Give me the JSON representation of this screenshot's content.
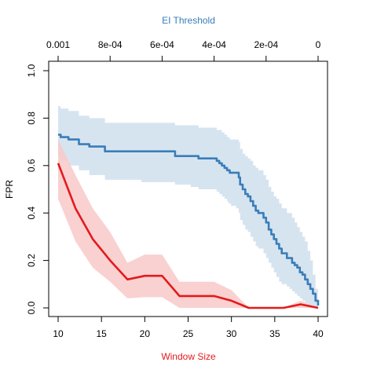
{
  "chart_data": {
    "type": "line",
    "top_axis": {
      "title": "EI Threshold",
      "title_color": "#3A7DB8",
      "ticks": [
        {
          "value": 0.001,
          "label": "0.001"
        },
        {
          "value": 0.0008,
          "label": "8e-04"
        },
        {
          "value": 0.0006,
          "label": "6e-04"
        },
        {
          "value": 0.0004,
          "label": "4e-04"
        },
        {
          "value": 0.0002,
          "label": "2e-04"
        },
        {
          "value": 0,
          "label": "0"
        }
      ],
      "xlim": [
        0.001,
        0
      ]
    },
    "bottom_axis": {
      "title": "Window Size",
      "title_color": "#E41A1C",
      "ticks": [
        {
          "value": 10,
          "label": "10"
        },
        {
          "value": 15,
          "label": "15"
        },
        {
          "value": 20,
          "label": "20"
        },
        {
          "value": 25,
          "label": "25"
        },
        {
          "value": 30,
          "label": "30"
        },
        {
          "value": 35,
          "label": "35"
        },
        {
          "value": 40,
          "label": "40"
        }
      ],
      "xlim": [
        10,
        40
      ]
    },
    "y_axis": {
      "title": "FPR",
      "ticks": [
        {
          "value": 0,
          "label": "0.0"
        },
        {
          "value": 0.2,
          "label": "0.2"
        },
        {
          "value": 0.4,
          "label": "0.4"
        },
        {
          "value": 0.6,
          "label": "0.6"
        },
        {
          "value": 0.8,
          "label": "0.8"
        },
        {
          "value": 1.0,
          "label": "1.0"
        }
      ],
      "ylim": [
        0,
        1.0
      ]
    },
    "grid": false,
    "series": [
      {
        "axis": "top",
        "color": "#3A7DB8",
        "band_color": "#D6E4F0",
        "step": true,
        "x": [
          0.001,
          0.00099,
          0.00096,
          0.00092,
          0.00088,
          0.00082,
          0.00075,
          0.00068,
          0.00062,
          0.00055,
          0.00049,
          0.00048,
          0.00047,
          0.00046,
          0.00045,
          0.00042,
          0.00039,
          0.00038,
          0.00037,
          0.00036,
          0.00035,
          0.000345,
          0.00034,
          0.000335,
          0.00033,
          0.000325,
          0.00032,
          0.000315,
          0.00031,
          0.000305,
          0.0003,
          0.00029,
          0.00028,
          0.00027,
          0.00026,
          0.00025,
          0.00024,
          0.00023,
          0.00021,
          0.0002,
          0.00019,
          0.00018,
          0.00017,
          0.00016,
          0.00015,
          0.00014,
          0.00013,
          0.00012,
          0.00011,
          0.0001,
          9e-05,
          8e-05,
          7e-05,
          6e-05,
          5e-05,
          4e-05,
          3e-05,
          2e-05,
          1e-05,
          0
        ],
        "y": [
          0.73,
          0.72,
          0.71,
          0.69,
          0.68,
          0.66,
          0.66,
          0.66,
          0.66,
          0.64,
          0.64,
          0.64,
          0.64,
          0.63,
          0.63,
          0.63,
          0.62,
          0.61,
          0.6,
          0.59,
          0.58,
          0.58,
          0.57,
          0.57,
          0.57,
          0.57,
          0.57,
          0.57,
          0.57,
          0.55,
          0.52,
          0.5,
          0.48,
          0.47,
          0.45,
          0.43,
          0.41,
          0.4,
          0.38,
          0.36,
          0.33,
          0.31,
          0.29,
          0.27,
          0.25,
          0.23,
          0.23,
          0.21,
          0.21,
          0.19,
          0.18,
          0.17,
          0.15,
          0.14,
          0.12,
          0.1,
          0.08,
          0.06,
          0.03,
          0.01
        ],
        "lower": [
          0.64,
          0.62,
          0.6,
          0.58,
          0.56,
          0.54,
          0.54,
          0.53,
          0.53,
          0.52,
          0.51,
          0.51,
          0.51,
          0.5,
          0.5,
          0.5,
          0.49,
          0.48,
          0.47,
          0.46,
          0.45,
          0.44,
          0.44,
          0.43,
          0.43,
          0.43,
          0.43,
          0.42,
          0.42,
          0.4,
          0.37,
          0.35,
          0.33,
          0.32,
          0.3,
          0.28,
          0.26,
          0.25,
          0.23,
          0.21,
          0.19,
          0.17,
          0.15,
          0.13,
          0.11,
          0.1,
          0.1,
          0.09,
          0.08,
          0.07,
          0.06,
          0.05,
          0.04,
          0.03,
          0.02,
          0.01,
          0.0,
          0.0,
          0.0,
          0.0
        ],
        "upper": [
          0.85,
          0.84,
          0.83,
          0.81,
          0.8,
          0.78,
          0.78,
          0.78,
          0.78,
          0.77,
          0.77,
          0.77,
          0.77,
          0.76,
          0.76,
          0.76,
          0.75,
          0.75,
          0.74,
          0.73,
          0.72,
          0.72,
          0.71,
          0.71,
          0.71,
          0.71,
          0.71,
          0.71,
          0.71,
          0.7,
          0.67,
          0.65,
          0.64,
          0.63,
          0.62,
          0.6,
          0.59,
          0.58,
          0.56,
          0.54,
          0.51,
          0.49,
          0.47,
          0.46,
          0.44,
          0.42,
          0.42,
          0.4,
          0.4,
          0.38,
          0.36,
          0.34,
          0.32,
          0.3,
          0.28,
          0.24,
          0.2,
          0.14,
          0.08,
          0.04
        ]
      },
      {
        "axis": "bottom",
        "color": "#E41A1C",
        "band_color": "#F8C9C9",
        "step": false,
        "x": [
          10,
          12,
          14,
          16,
          18,
          20,
          22,
          24,
          26,
          28,
          30,
          32,
          34,
          36,
          38,
          40
        ],
        "y": [
          0.61,
          0.42,
          0.29,
          0.2,
          0.12,
          0.135,
          0.135,
          0.05,
          0.05,
          0.05,
          0.03,
          0.0,
          0.0,
          0.0,
          0.015,
          0.0
        ],
        "lower": [
          0.46,
          0.28,
          0.17,
          0.11,
          0.04,
          0.045,
          0.045,
          0.0,
          0.0,
          0.0,
          0.0,
          0.0,
          0.0,
          0.0,
          0.0,
          0.0
        ],
        "upper": [
          0.71,
          0.56,
          0.42,
          0.32,
          0.19,
          0.225,
          0.225,
          0.11,
          0.11,
          0.11,
          0.075,
          0.0,
          0.0,
          0.0,
          0.03,
          0.0
        ]
      }
    ]
  }
}
